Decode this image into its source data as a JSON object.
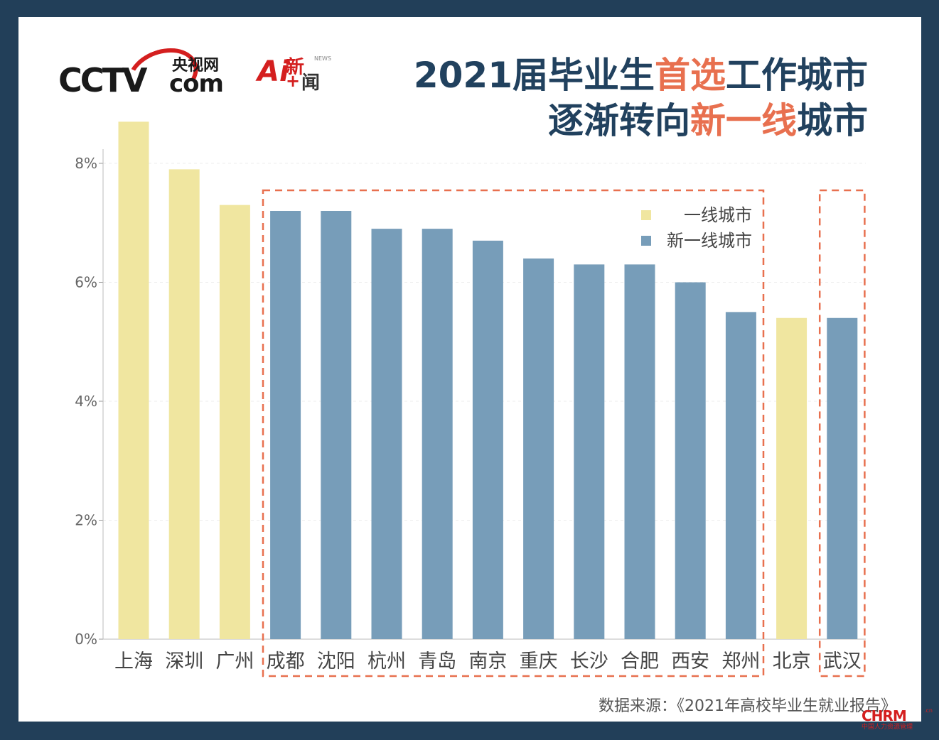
{
  "header": {
    "cctv_main": "CCTV",
    "cctv_cn": "央视网",
    "cctv_com": "com",
    "ai_a": "Ai",
    "ai_xin": "新",
    "ai_wen": "闻",
    "ai_news": "NEWS",
    "ai_plus": "+",
    "title_line1_a": "2021届毕业生",
    "title_line1_hl": "首选",
    "title_line1_b": "工作城市",
    "title_line2_a": "逐渐转向",
    "title_line2_hl": "新一线",
    "title_line2_b": "城市"
  },
  "footer": {
    "source": "数据来源：《2021年高校毕业生就业报告》",
    "chrm_big": "CHRM",
    "chrm_cn": ".cn",
    "chrm_sub": "中国人力资源管理"
  },
  "colors": {
    "tier1": "#f0e6a0",
    "new_tier1": "#779db9",
    "highlight": "#e8704f",
    "title": "#21415e",
    "frame": "#223f59"
  },
  "chart_data": {
    "type": "bar",
    "categories": [
      "上海",
      "深圳",
      "广州",
      "成都",
      "沈阳",
      "杭州",
      "青岛",
      "南京",
      "重庆",
      "长沙",
      "合肥",
      "西安",
      "郑州",
      "北京",
      "武汉"
    ],
    "values": [
      8.7,
      7.9,
      7.3,
      7.2,
      7.2,
      6.9,
      6.9,
      6.7,
      6.4,
      6.3,
      6.3,
      6.0,
      5.5,
      5.4,
      5.4
    ],
    "groups": [
      "一线城市",
      "一线城市",
      "一线城市",
      "新一线城市",
      "新一线城市",
      "新一线城市",
      "新一线城市",
      "新一线城市",
      "新一线城市",
      "新一线城市",
      "新一线城市",
      "新一线城市",
      "新一线城市",
      "一线城市",
      "新一线城市"
    ],
    "ylim": [
      0,
      8.7
    ],
    "yticks": [
      "0%",
      "2%",
      "4%",
      "6%",
      "8%"
    ],
    "ytick_values": [
      0,
      2,
      4,
      6,
      8
    ],
    "legend": [
      "一线城市",
      "新一线城市"
    ],
    "legend_position": "top-right",
    "grid": true
  }
}
